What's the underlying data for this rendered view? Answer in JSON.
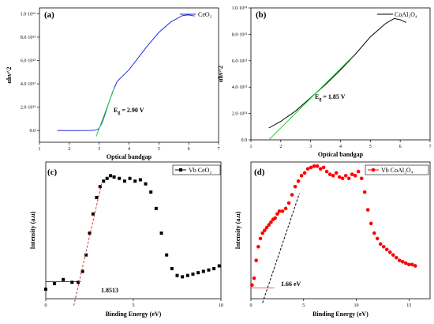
{
  "figure": {
    "background": "#ffffff"
  },
  "chart_data": [
    {
      "id": "a",
      "panel_label": "(a)",
      "type": "line",
      "xlabel": "Optical bandgap",
      "ylabel": "αhν^2",
      "xlim": [
        1,
        7
      ],
      "ylim": [
        -10000000000000.0,
        105000000000000.0
      ],
      "xticks": [
        1,
        2,
        3,
        4,
        5,
        6,
        7
      ],
      "yticks": [
        0.0,
        20000000000000.0,
        40000000000000.0,
        60000000000000.0,
        80000000000000.0,
        100000000000000.0
      ],
      "ytick_labels": [
        "0.0",
        "2.0·10¹³",
        "4.0·10¹³",
        "6.0·10¹³",
        "8.0·10¹³",
        "1.0·10¹⁴"
      ],
      "legend": {
        "name": "CeO₂",
        "color": "#1f2fd6",
        "position": "top-right"
      },
      "series": [
        {
          "name": "CeO₂",
          "color": "#1f2fd6",
          "x": [
            1.6,
            2.2,
            2.7,
            2.85,
            2.95,
            3.0,
            3.1,
            3.2,
            3.3,
            3.45,
            3.6,
            3.8,
            4.0,
            4.3,
            4.6,
            5.0,
            5.4,
            5.8,
            6.0,
            6.2
          ],
          "y": [
            0,
            0,
            50000000000.0,
            300000000000.0,
            1000000000000.0,
            2000000000000.0,
            7000000000000.0,
            14000000000000.0,
            22000000000000.0,
            33000000000000.0,
            42000000000000.0,
            47000000000000.0,
            52000000000000.0,
            62000000000000.0,
            72000000000000.0,
            84000000000000.0,
            93000000000000.0,
            98500000000000.0,
            99000000000000.0,
            98000000000000.0
          ]
        }
      ],
      "fit_line": {
        "color": "#2ecc40",
        "x": [
          2.9,
          3.5
        ],
        "y": [
          -5000000000000.0,
          36000000000000.0
        ]
      },
      "annotation": {
        "text": "E",
        "sub": "g",
        "rest": " = 2.90 V"
      }
    },
    {
      "id": "b",
      "panel_label": "(b)",
      "type": "line",
      "xlabel": "Optical bandgap",
      "ylabel": "αhν^2",
      "xlim": [
        1,
        7
      ],
      "ylim": [
        0,
        100000000000000.0
      ],
      "xticks": [
        1,
        2,
        3,
        4,
        5,
        6,
        7
      ],
      "yticks": [
        0,
        20000000000000.0,
        40000000000000.0,
        60000000000000.0,
        80000000000000.0,
        100000000000000.0
      ],
      "ytick_labels": [
        "0.0",
        "2.0·10¹³",
        "4.0·10¹³",
        "6.0·10¹³",
        "8.0·10¹³",
        "1.0·10¹⁴"
      ],
      "legend": {
        "name": "CoAl₂O₄",
        "color": "#000000",
        "position": "top-right"
      },
      "series": [
        {
          "name": "CoAl₂O₄",
          "color": "#000000",
          "x": [
            1.6,
            2.0,
            2.5,
            3.0,
            3.5,
            4.0,
            4.5,
            5.0,
            5.5,
            5.8,
            6.0,
            6.2
          ],
          "y": [
            9000000000000.0,
            14000000000000.0,
            22000000000000.0,
            32000000000000.0,
            42000000000000.0,
            53000000000000.0,
            65000000000000.0,
            78000000000000.0,
            88000000000000.0,
            92000000000000.0,
            91000000000000.0,
            89000000000000.0
          ]
        }
      ],
      "fit_line": {
        "color": "#2ecc40",
        "x": [
          1.6,
          4.4
        ],
        "y": [
          0,
          63000000000000.0
        ]
      },
      "annotation": {
        "text": "E",
        "sub": "g",
        "rest": " = 1.85 V"
      }
    },
    {
      "id": "c",
      "panel_label": "(c)",
      "type": "scatter",
      "xlabel": "Binding Energy (eV)",
      "ylabel": "Intensity (a.u)",
      "xlim": [
        0,
        10
      ],
      "ylim": [
        0,
        1
      ],
      "xticks": [
        0,
        5,
        10
      ],
      "yticks": [],
      "legend": {
        "name": "Vb CeO₂",
        "color": "#000000",
        "position": "top-right"
      },
      "series": [
        {
          "name": "Vb CeO₂",
          "color": "#000000",
          "marker": "square",
          "x": [
            0.0,
            0.5,
            1.0,
            1.5,
            1.85,
            2.1,
            2.3,
            2.5,
            2.7,
            2.9,
            3.1,
            3.3,
            3.5,
            3.7,
            3.9,
            4.2,
            4.5,
            4.8,
            5.1,
            5.4,
            5.7,
            6.0,
            6.3,
            6.6,
            6.9,
            7.2,
            7.5,
            7.8,
            8.1,
            8.4,
            8.7,
            9.0,
            9.3,
            9.6,
            9.9
          ],
          "y": [
            0.07,
            0.11,
            0.14,
            0.12,
            0.12,
            0.2,
            0.32,
            0.48,
            0.62,
            0.74,
            0.82,
            0.86,
            0.88,
            0.9,
            0.89,
            0.88,
            0.86,
            0.88,
            0.86,
            0.87,
            0.84,
            0.78,
            0.66,
            0.48,
            0.32,
            0.22,
            0.17,
            0.16,
            0.17,
            0.18,
            0.19,
            0.2,
            0.21,
            0.22,
            0.24
          ]
        }
      ],
      "fit_line": {
        "color": "#e03030",
        "style": "dashed",
        "x": [
          1.6,
          3.2
        ],
        "y": [
          -0.05,
          0.85
        ]
      },
      "baseline": {
        "color": "#000000",
        "x": [
          0,
          2.0
        ],
        "y": [
          0.125,
          0.125
        ]
      },
      "annotation": {
        "text": "1.8513"
      }
    },
    {
      "id": "d",
      "panel_label": "(d)",
      "type": "scatter",
      "xlabel": "Binding Energy (eV)",
      "ylabel": "Intensity (a.u)",
      "xlim": [
        0,
        17
      ],
      "ylim": [
        0,
        1
      ],
      "xticks": [
        0,
        5,
        10,
        15
      ],
      "yticks": [],
      "legend": {
        "name": "Vb CoAl₂O₄",
        "color": "#ff0000",
        "position": "top-right"
      },
      "series": [
        {
          "name": "Vb CoAl₂O₄",
          "color": "#ff0000",
          "marker": "circle",
          "x": [
            0.1,
            0.3,
            0.5,
            0.7,
            0.9,
            1.1,
            1.3,
            1.5,
            1.7,
            1.9,
            2.1,
            2.3,
            2.5,
            2.7,
            3.0,
            3.3,
            3.6,
            3.9,
            4.2,
            4.5,
            4.8,
            5.1,
            5.4,
            5.7,
            6.0,
            6.3,
            6.6,
            6.9,
            7.2,
            7.5,
            7.8,
            8.1,
            8.4,
            8.7,
            9.0,
            9.3,
            9.6,
            9.9,
            10.2,
            10.5,
            10.8,
            11.1,
            11.4,
            11.7,
            12.0,
            12.3,
            12.6,
            12.9,
            13.2,
            13.5,
            13.8,
            14.1,
            14.4,
            14.7,
            15.0,
            15.3,
            15.6
          ],
          "y": [
            0.1,
            0.15,
            0.28,
            0.38,
            0.44,
            0.48,
            0.5,
            0.52,
            0.54,
            0.56,
            0.58,
            0.59,
            0.62,
            0.64,
            0.64,
            0.66,
            0.7,
            0.76,
            0.82,
            0.86,
            0.9,
            0.92,
            0.95,
            0.96,
            0.97,
            0.97,
            0.95,
            0.96,
            0.93,
            0.91,
            0.9,
            0.92,
            0.89,
            0.88,
            0.9,
            0.88,
            0.91,
            0.9,
            0.93,
            0.88,
            0.78,
            0.65,
            0.55,
            0.48,
            0.44,
            0.4,
            0.38,
            0.36,
            0.34,
            0.32,
            0.3,
            0.28,
            0.27,
            0.26,
            0.25,
            0.25,
            0.24
          ]
        }
      ],
      "fit_line": {
        "color": "#000000",
        "style": "dashed",
        "x": [
          1.1,
          4.6
        ],
        "y": [
          -0.03,
          0.77
        ]
      },
      "baseline": {
        "color": "#e03030",
        "x": [
          0,
          2.2
        ],
        "y": [
          0.08,
          0.08
        ]
      },
      "annotation": {
        "text": "1.66 eV"
      }
    }
  ]
}
